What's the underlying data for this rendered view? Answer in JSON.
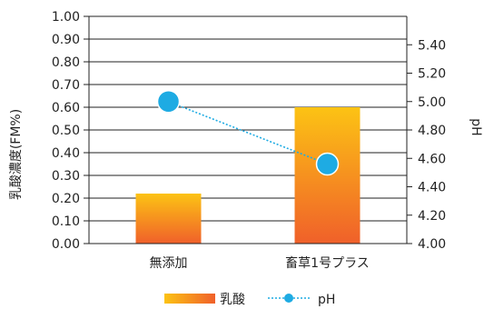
{
  "chart_data": {
    "type": "bar",
    "categories": [
      "無添加",
      "畜草1号プラス"
    ],
    "series": [
      {
        "name": "乳酸",
        "type": "bar",
        "axis": "left",
        "values": [
          0.22,
          0.6
        ]
      },
      {
        "name": "pH",
        "type": "line",
        "axis": "right",
        "line_style": "dotted",
        "values": [
          5.0,
          4.56
        ]
      }
    ],
    "ylabel": "乳酸濃度(FM%)",
    "ylabel_right": "pH",
    "ylim": [
      0,
      1.0
    ],
    "ylim_right": [
      4.0,
      5.6
    ],
    "yticks": [
      "0.00",
      "0.10",
      "0.20",
      "0.30",
      "0.40",
      "0.50",
      "0.60",
      "0.70",
      "0.80",
      "0.90",
      "1.00"
    ],
    "yticks_right": [
      "4.00",
      "4.20",
      "4.40",
      "4.60",
      "4.80",
      "5.00",
      "5.20",
      "5.40"
    ],
    "grid": true,
    "legend_position": "bottom",
    "colors": {
      "bar_top": "#fcc314",
      "bar_bottom": "#f0602a",
      "line": "#1eabe3",
      "axis": "#222222",
      "grid": "#222222"
    }
  }
}
